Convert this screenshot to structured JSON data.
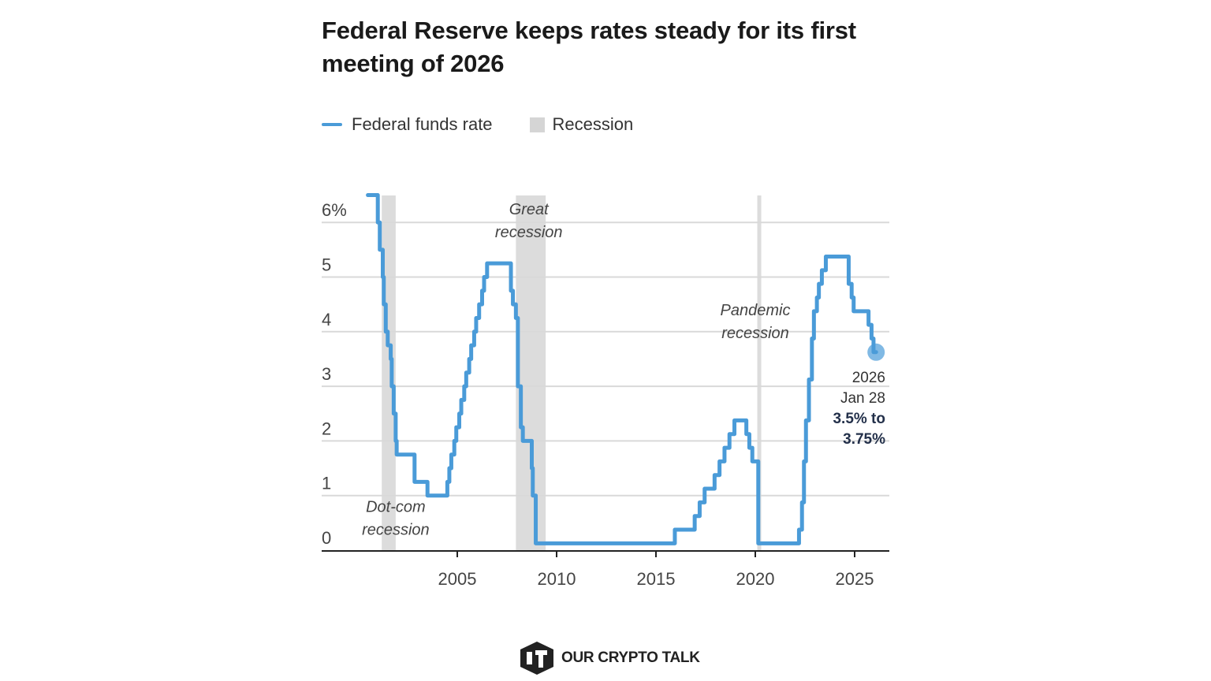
{
  "title": "Federal Reserve keeps rates steady for its first meeting of 2026",
  "legend": {
    "line_label": "Federal funds rate",
    "box_label": "Recession"
  },
  "colors": {
    "line": "#4a9bd8",
    "recession": "#dcdcdc",
    "grid": "#d9d9d9",
    "axis": "#222222",
    "marker": "#4a9bd8"
  },
  "brand": {
    "name": "OUR CRYPTO TALK",
    "icon": "cube-logo-icon"
  },
  "chart_data": {
    "type": "line",
    "title": "Federal Reserve keeps rates steady for its first meeting of 2026",
    "xlabel": "",
    "ylabel": "",
    "xlim": [
      2000.2,
      2026.7
    ],
    "ylim": [
      0,
      6.5
    ],
    "grid": true,
    "legend_position": "top-left",
    "y_ticks": [
      {
        "value": 0,
        "label": "0"
      },
      {
        "value": 1,
        "label": "1"
      },
      {
        "value": 2,
        "label": "2"
      },
      {
        "value": 3,
        "label": "3"
      },
      {
        "value": 4,
        "label": "4"
      },
      {
        "value": 5,
        "label": "5"
      },
      {
        "value": 6,
        "label": "6%"
      }
    ],
    "x_ticks": [
      {
        "value": 2005,
        "label": "2005"
      },
      {
        "value": 2010,
        "label": "2010"
      },
      {
        "value": 2015,
        "label": "2015"
      },
      {
        "value": 2020,
        "label": "2020"
      },
      {
        "value": 2025,
        "label": "2025"
      }
    ],
    "recessions": [
      {
        "name": "Dot-com recession",
        "start": 2001.2,
        "end": 2001.9
      },
      {
        "name": "Great recession",
        "start": 2007.95,
        "end": 2009.45
      },
      {
        "name": "Pandemic recession",
        "start": 2020.1,
        "end": 2020.3
      }
    ],
    "annotations": [
      {
        "lines": [
          "Dot-com",
          "recession"
        ],
        "x": 2001.9,
        "y": 0.7
      },
      {
        "lines": [
          "Great",
          "recession"
        ],
        "x": 2008.6,
        "y": 6.15
      },
      {
        "lines": [
          "Pandemic",
          "recession"
        ],
        "x": 2020.0,
        "y": 4.3
      }
    ],
    "callout": {
      "x": 2026.08,
      "y": 3.625,
      "lines": [
        "2026",
        "Jan 28"
      ],
      "bold_lines": [
        "3.5% to",
        "3.75%"
      ]
    },
    "series": [
      {
        "name": "Federal funds rate",
        "step": true,
        "points": [
          [
            2000.5,
            6.5
          ],
          [
            2001.0,
            6.0
          ],
          [
            2001.1,
            5.5
          ],
          [
            2001.25,
            5.0
          ],
          [
            2001.3,
            4.5
          ],
          [
            2001.4,
            4.0
          ],
          [
            2001.5,
            3.75
          ],
          [
            2001.65,
            3.5
          ],
          [
            2001.7,
            3.0
          ],
          [
            2001.8,
            2.5
          ],
          [
            2001.9,
            2.0
          ],
          [
            2001.95,
            1.75
          ],
          [
            2002.85,
            1.25
          ],
          [
            2003.5,
            1.0
          ],
          [
            2004.5,
            1.25
          ],
          [
            2004.6,
            1.5
          ],
          [
            2004.7,
            1.75
          ],
          [
            2004.85,
            2.0
          ],
          [
            2004.95,
            2.25
          ],
          [
            2005.1,
            2.5
          ],
          [
            2005.2,
            2.75
          ],
          [
            2005.35,
            3.0
          ],
          [
            2005.45,
            3.25
          ],
          [
            2005.6,
            3.5
          ],
          [
            2005.7,
            3.75
          ],
          [
            2005.85,
            4.0
          ],
          [
            2005.95,
            4.25
          ],
          [
            2006.1,
            4.5
          ],
          [
            2006.25,
            4.75
          ],
          [
            2006.35,
            5.0
          ],
          [
            2006.5,
            5.25
          ],
          [
            2007.7,
            4.75
          ],
          [
            2007.8,
            4.5
          ],
          [
            2007.95,
            4.25
          ],
          [
            2008.05,
            3.0
          ],
          [
            2008.2,
            2.25
          ],
          [
            2008.3,
            2.0
          ],
          [
            2008.75,
            1.5
          ],
          [
            2008.8,
            1.0
          ],
          [
            2008.95,
            0.125
          ],
          [
            2015.95,
            0.375
          ],
          [
            2016.95,
            0.625
          ],
          [
            2017.2,
            0.875
          ],
          [
            2017.45,
            1.125
          ],
          [
            2017.95,
            1.375
          ],
          [
            2018.2,
            1.625
          ],
          [
            2018.45,
            1.875
          ],
          [
            2018.7,
            2.125
          ],
          [
            2018.95,
            2.375
          ],
          [
            2019.55,
            2.125
          ],
          [
            2019.7,
            1.875
          ],
          [
            2019.85,
            1.625
          ],
          [
            2020.15,
            0.125
          ],
          [
            2022.2,
            0.375
          ],
          [
            2022.35,
            0.875
          ],
          [
            2022.45,
            1.625
          ],
          [
            2022.55,
            2.375
          ],
          [
            2022.7,
            3.125
          ],
          [
            2022.85,
            3.875
          ],
          [
            2022.95,
            4.375
          ],
          [
            2023.1,
            4.625
          ],
          [
            2023.2,
            4.875
          ],
          [
            2023.35,
            5.125
          ],
          [
            2023.55,
            5.375
          ],
          [
            2024.7,
            4.875
          ],
          [
            2024.85,
            4.625
          ],
          [
            2024.95,
            4.375
          ],
          [
            2025.7,
            4.125
          ],
          [
            2025.85,
            3.875
          ],
          [
            2025.95,
            3.625
          ],
          [
            2026.08,
            3.625
          ]
        ]
      }
    ]
  }
}
